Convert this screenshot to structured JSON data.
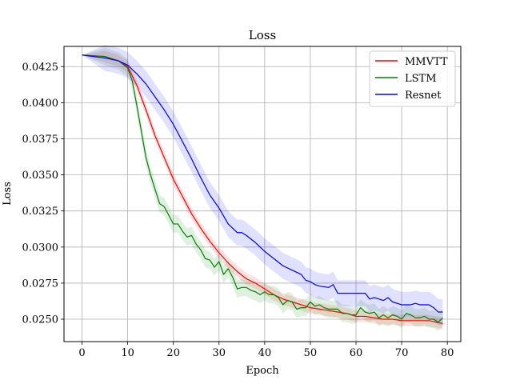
{
  "chart_data": {
    "type": "line",
    "title": "Loss",
    "xlabel": "Epoch",
    "ylabel": "Loss",
    "xlim": [
      -3.95,
      82.95
    ],
    "ylim": [
      0.02345,
      0.0439
    ],
    "xticks": [
      "0",
      "10",
      "20",
      "30",
      "40",
      "50",
      "60",
      "70",
      "80"
    ],
    "xtick_values": [
      0,
      10,
      20,
      30,
      40,
      50,
      60,
      70,
      80
    ],
    "yticks": [
      "0.0250",
      "0.0275",
      "0.0300",
      "0.0325",
      "0.0350",
      "0.0375",
      "0.0400",
      "0.0425"
    ],
    "ytick_values": [
      0.025,
      0.0275,
      0.03,
      0.0325,
      0.035,
      0.0375,
      0.04,
      0.0425
    ],
    "grid": true,
    "legend_placement": "top-right",
    "series": [
      {
        "name": "MMVTT",
        "color": "#ff0000",
        "x": [
          0,
          5,
          8,
          10,
          12,
          14,
          16,
          18,
          20,
          22,
          24,
          26,
          28,
          30,
          32,
          34,
          36,
          38,
          40,
          42,
          44,
          46,
          48,
          50,
          52,
          54,
          56,
          58,
          60,
          62,
          64,
          66,
          68,
          70,
          72,
          74,
          76,
          79
        ],
        "y": [
          0.0433,
          0.0432,
          0.0429,
          0.0425,
          0.0412,
          0.0395,
          0.0377,
          0.0362,
          0.0347,
          0.0335,
          0.0323,
          0.0313,
          0.0304,
          0.0296,
          0.0289,
          0.0283,
          0.0278,
          0.0275,
          0.0271,
          0.0267,
          0.0264,
          0.0262,
          0.026,
          0.0258,
          0.0257,
          0.0256,
          0.0255,
          0.0254,
          0.0252,
          0.0252,
          0.0251,
          0.025,
          0.025,
          0.0249,
          0.0249,
          0.0249,
          0.0249,
          0.0247
        ],
        "band": 0.0004
      },
      {
        "name": "LSTM",
        "color": "#008000",
        "x": [
          0,
          5,
          8,
          10,
          11,
          12,
          13,
          14,
          15,
          16,
          17,
          18,
          19,
          20,
          21,
          22,
          23,
          24,
          25,
          26,
          27,
          28,
          29,
          30,
          31,
          32,
          33,
          34,
          35,
          36,
          37,
          38,
          39,
          40,
          41,
          42,
          43,
          44,
          45,
          46,
          47,
          48,
          49,
          50,
          51,
          52,
          53,
          54,
          55,
          56,
          57,
          58,
          59,
          60,
          61,
          62,
          63,
          64,
          65,
          66,
          67,
          68,
          69,
          70,
          71,
          72,
          73,
          74,
          75,
          76,
          77,
          78,
          79
        ],
        "y": [
          0.0433,
          0.0432,
          0.0429,
          0.0424,
          0.0415,
          0.0398,
          0.038,
          0.0362,
          0.035,
          0.034,
          0.033,
          0.0328,
          0.0322,
          0.0316,
          0.0316,
          0.0311,
          0.0307,
          0.0308,
          0.0302,
          0.0298,
          0.0292,
          0.0291,
          0.0286,
          0.029,
          0.0281,
          0.0285,
          0.0279,
          0.0271,
          0.0272,
          0.0272,
          0.027,
          0.0269,
          0.0267,
          0.0269,
          0.0267,
          0.0267,
          0.0265,
          0.026,
          0.0263,
          0.0262,
          0.0257,
          0.0258,
          0.0258,
          0.0262,
          0.0259,
          0.026,
          0.0258,
          0.0257,
          0.0257,
          0.0257,
          0.0254,
          0.0254,
          0.0253,
          0.0253,
          0.0258,
          0.0255,
          0.0254,
          0.0255,
          0.0251,
          0.0253,
          0.0251,
          0.0253,
          0.0252,
          0.025,
          0.0254,
          0.0253,
          0.0251,
          0.0251,
          0.0252,
          0.025,
          0.025,
          0.0248,
          0.0251
        ],
        "band": 0.0006
      },
      {
        "name": "Resnet",
        "color": "#0000ff",
        "x": [
          0,
          5,
          8,
          10,
          12,
          14,
          16,
          18,
          20,
          22,
          24,
          26,
          28,
          30,
          32,
          34,
          35,
          36,
          38,
          40,
          42,
          44,
          46,
          48,
          49,
          50,
          51,
          52,
          54,
          55,
          56,
          58,
          60,
          62,
          63,
          64,
          66,
          67,
          68,
          70,
          72,
          73,
          74,
          76,
          77,
          78,
          79
        ],
        "y": [
          0.0433,
          0.0431,
          0.0429,
          0.0426,
          0.042,
          0.0413,
          0.0404,
          0.0395,
          0.0385,
          0.0373,
          0.0361,
          0.0348,
          0.0336,
          0.0327,
          0.0316,
          0.031,
          0.031,
          0.0308,
          0.0303,
          0.0297,
          0.0292,
          0.0287,
          0.0284,
          0.0281,
          0.0277,
          0.0276,
          0.0274,
          0.0273,
          0.0272,
          0.0274,
          0.0268,
          0.0268,
          0.0268,
          0.0268,
          0.0264,
          0.0265,
          0.0263,
          0.0265,
          0.0262,
          0.026,
          0.026,
          0.0261,
          0.026,
          0.026,
          0.0258,
          0.0255,
          0.0255
        ],
        "band": 0.0009
      }
    ]
  }
}
